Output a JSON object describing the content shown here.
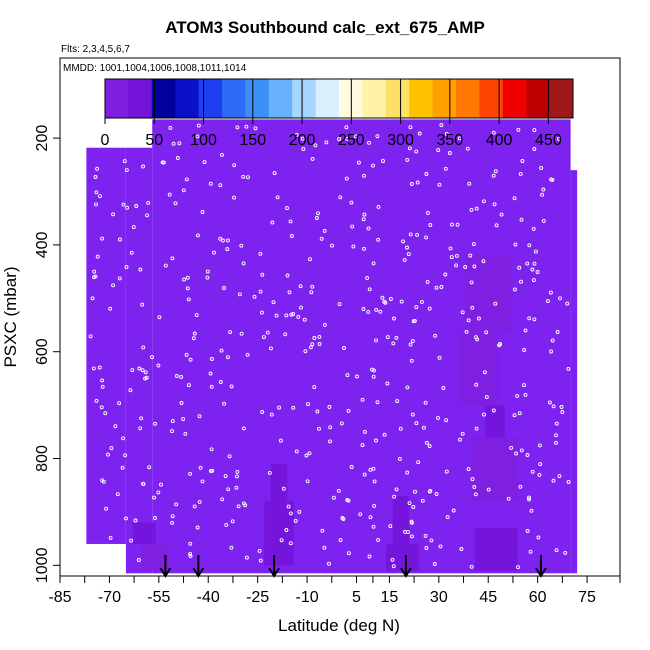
{
  "chart_data": {
    "type": "heatmap",
    "title": "ATOM3 Southbound calc_ext_675_AMP",
    "notes": {
      "flights": "Flts: 2,3,4,5,6,7",
      "dates": "MMDD: 1001,1004,1006,1008,1011,1014"
    },
    "xlabel": "Latitude (deg N)",
    "ylabel": "PSXC (mbar)",
    "xlim": [
      -85,
      85
    ],
    "ylim": [
      1020,
      50
    ],
    "x_ticks": [
      -85,
      -70,
      -55,
      -40,
      -25,
      -10,
      5,
      15,
      30,
      45,
      60,
      75
    ],
    "y_ticks": [
      200,
      400,
      600,
      800,
      1000
    ],
    "colorbar": {
      "range": [
        0,
        475
      ],
      "ticks": [
        0,
        50,
        100,
        150,
        200,
        250,
        300,
        350,
        400,
        450
      ],
      "colors": [
        "#7e1fe0",
        "#7414d8",
        "#00009a",
        "#0a10c8",
        "#1e3ef0",
        "#2f6cf5",
        "#3d8ff8",
        "#68b2fb",
        "#a6d6fd",
        "#daf0fe",
        "#fffbe0",
        "#fff3a8",
        "#ffe066",
        "#ffc000",
        "#ffa000",
        "#ff7800",
        "#ff4600",
        "#ee0000",
        "#c00000",
        "#a01818"
      ]
    },
    "background_value": 5,
    "fill_color": "#7e22f0",
    "enhanced_regions": [
      {
        "lat": [
          44,
          50
        ],
        "p": [
          700,
          760
        ],
        "value": 45
      },
      {
        "lat": [
          40,
          54
        ],
        "p": [
          760,
          880
        ],
        "value": 20
      },
      {
        "lat": [
          38,
          52
        ],
        "p": [
          420,
          560
        ],
        "value": 15
      },
      {
        "lat": [
          36,
          48
        ],
        "p": [
          560,
          700
        ],
        "value": 12
      },
      {
        "lat": [
          -21,
          -16
        ],
        "p": [
          810,
          880
        ],
        "value": 40
      },
      {
        "lat": [
          -23,
          -14
        ],
        "p": [
          880,
          1000
        ],
        "value": 25
      },
      {
        "lat": [
          16,
          21
        ],
        "p": [
          870,
          960
        ],
        "value": 40
      },
      {
        "lat": [
          14,
          24
        ],
        "p": [
          960,
          1010
        ],
        "value": 30
      },
      {
        "lat": [
          41,
          54
        ],
        "p": [
          930,
          1010
        ],
        "value": 40
      },
      {
        "lat": [
          -63,
          -56
        ],
        "p": [
          920,
          960
        ],
        "value": 25
      },
      {
        "lat": [
          -60,
          -52
        ],
        "p": [
          960,
          1010
        ],
        "value": 20
      }
    ],
    "markers": [
      {
        "lat": -53,
        "label": ""
      },
      {
        "lat": -43,
        "label": ""
      },
      {
        "lat": -20,
        "label": ""
      },
      {
        "lat": 20,
        "label": ""
      },
      {
        "lat": 61,
        "label": ""
      }
    ],
    "coverage": [
      {
        "lat": [
          -77,
          -65
        ],
        "p": [
          218,
          960
        ]
      },
      {
        "lat": [
          -65,
          -63
        ],
        "p": [
          218,
          1015
        ]
      },
      {
        "lat": [
          -63,
          -57
        ],
        "p": [
          218,
          1015
        ]
      },
      {
        "lat": [
          -57,
          70
        ],
        "p": [
          165,
          1015
        ]
      },
      {
        "lat": [
          70,
          72
        ],
        "p": [
          260,
          1015
        ]
      }
    ],
    "grid": false,
    "legend": "colorbar-top"
  }
}
